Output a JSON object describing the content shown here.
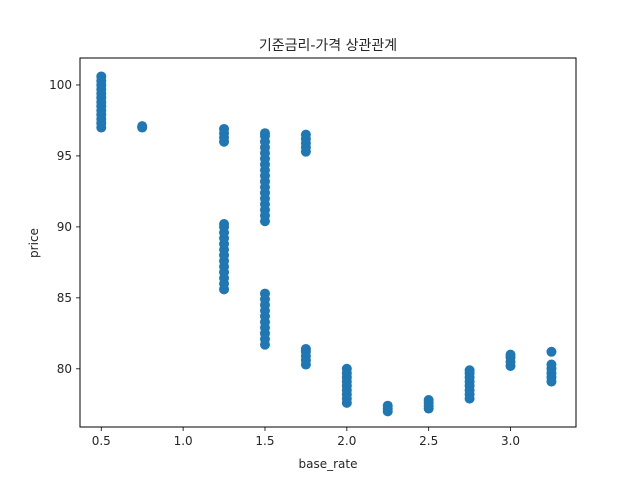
{
  "chart_data": {
    "type": "scatter",
    "title": "기준금리-가격 상관관계",
    "xlabel": "base_rate",
    "ylabel": "price",
    "xlim": [
      0.37,
      3.4
    ],
    "ylim": [
      75.9,
      101.9
    ],
    "xticks": [
      0.5,
      1.0,
      1.5,
      2.0,
      2.5,
      3.0
    ],
    "yticks": [
      80,
      85,
      90,
      95,
      100
    ],
    "grid": false,
    "marker_color": "#1f77b4",
    "series": [
      {
        "points": [
          [
            0.5,
            97.0
          ],
          [
            0.5,
            97.3
          ],
          [
            0.5,
            97.6
          ],
          [
            0.5,
            97.9
          ],
          [
            0.5,
            98.2
          ],
          [
            0.5,
            98.5
          ],
          [
            0.5,
            98.8
          ],
          [
            0.5,
            99.1
          ],
          [
            0.5,
            99.4
          ],
          [
            0.5,
            99.7
          ],
          [
            0.5,
            100.0
          ],
          [
            0.5,
            100.3
          ],
          [
            0.5,
            100.6
          ],
          [
            0.75,
            97.0
          ],
          [
            0.75,
            97.1
          ],
          [
            1.25,
            96.0
          ],
          [
            1.25,
            96.3
          ],
          [
            1.25,
            96.6
          ],
          [
            1.25,
            96.9
          ],
          [
            1.25,
            85.6
          ],
          [
            1.25,
            86.0
          ],
          [
            1.25,
            86.4
          ],
          [
            1.25,
            86.8
          ],
          [
            1.25,
            87.2
          ],
          [
            1.25,
            87.6
          ],
          [
            1.25,
            88.0
          ],
          [
            1.25,
            88.4
          ],
          [
            1.25,
            88.8
          ],
          [
            1.25,
            89.2
          ],
          [
            1.25,
            89.6
          ],
          [
            1.25,
            90.0
          ],
          [
            1.25,
            90.2
          ],
          [
            1.5,
            90.4
          ],
          [
            1.5,
            90.8
          ],
          [
            1.5,
            91.2
          ],
          [
            1.5,
            91.6
          ],
          [
            1.5,
            92.0
          ],
          [
            1.5,
            92.4
          ],
          [
            1.5,
            92.8
          ],
          [
            1.5,
            93.2
          ],
          [
            1.5,
            93.6
          ],
          [
            1.5,
            94.0
          ],
          [
            1.5,
            94.4
          ],
          [
            1.5,
            94.8
          ],
          [
            1.5,
            95.2
          ],
          [
            1.5,
            95.6
          ],
          [
            1.5,
            96.0
          ],
          [
            1.5,
            96.4
          ],
          [
            1.5,
            96.6
          ],
          [
            1.5,
            81.7
          ],
          [
            1.5,
            82.1
          ],
          [
            1.5,
            82.5
          ],
          [
            1.5,
            82.9
          ],
          [
            1.5,
            83.3
          ],
          [
            1.5,
            83.7
          ],
          [
            1.5,
            84.1
          ],
          [
            1.5,
            84.5
          ],
          [
            1.5,
            84.9
          ],
          [
            1.5,
            85.3
          ],
          [
            1.75,
            95.3
          ],
          [
            1.75,
            95.6
          ],
          [
            1.75,
            95.9
          ],
          [
            1.75,
            96.2
          ],
          [
            1.75,
            96.5
          ],
          [
            1.75,
            80.3
          ],
          [
            1.75,
            80.6
          ],
          [
            1.75,
            80.9
          ],
          [
            1.75,
            81.2
          ],
          [
            1.75,
            81.4
          ],
          [
            2.0,
            77.6
          ],
          [
            2.0,
            77.9
          ],
          [
            2.0,
            78.2
          ],
          [
            2.0,
            78.5
          ],
          [
            2.0,
            78.8
          ],
          [
            2.0,
            79.1
          ],
          [
            2.0,
            79.4
          ],
          [
            2.0,
            79.7
          ],
          [
            2.0,
            80.0
          ],
          [
            2.25,
            77.0
          ],
          [
            2.25,
            77.2
          ],
          [
            2.25,
            77.4
          ],
          [
            2.5,
            77.2
          ],
          [
            2.5,
            77.4
          ],
          [
            2.5,
            77.6
          ],
          [
            2.5,
            77.8
          ],
          [
            2.75,
            77.9
          ],
          [
            2.75,
            78.2
          ],
          [
            2.75,
            78.5
          ],
          [
            2.75,
            78.8
          ],
          [
            2.75,
            79.1
          ],
          [
            2.75,
            79.4
          ],
          [
            2.75,
            79.7
          ],
          [
            2.75,
            79.9
          ],
          [
            3.0,
            80.2
          ],
          [
            3.0,
            80.5
          ],
          [
            3.0,
            80.8
          ],
          [
            3.0,
            81.0
          ],
          [
            3.25,
            79.1
          ],
          [
            3.25,
            79.4
          ],
          [
            3.25,
            79.7
          ],
          [
            3.25,
            80.0
          ],
          [
            3.25,
            80.3
          ],
          [
            3.25,
            81.2
          ]
        ]
      }
    ]
  }
}
